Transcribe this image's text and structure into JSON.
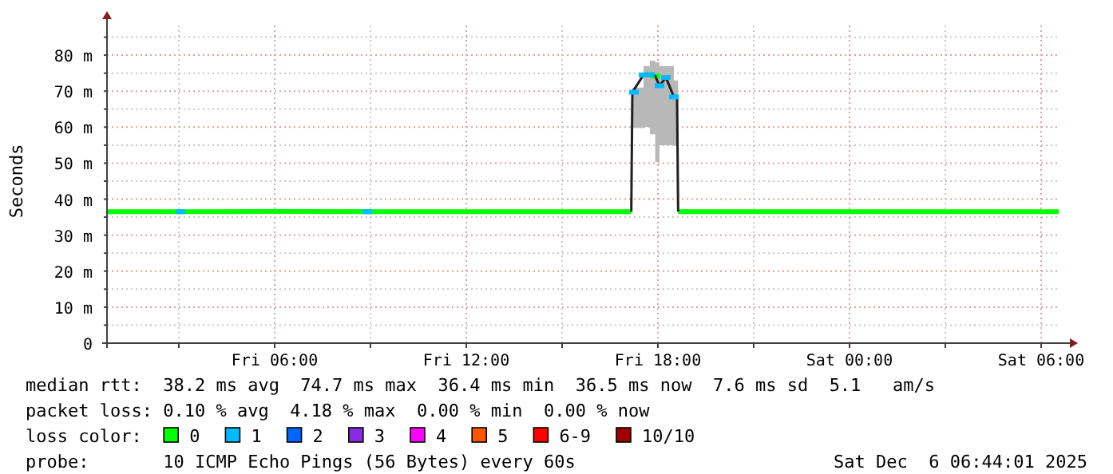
{
  "chart_data": {
    "type": "line",
    "ylabel": "Seconds",
    "legend_title": "loss color:",
    "legend": "bottom",
    "grid": true,
    "x": [
      "2025-12-05T00:45",
      "2025-12-05T03:00",
      "2025-12-05T06:00",
      "2025-12-05T09:00",
      "2025-12-05T12:00",
      "2025-12-05T15:00",
      "2025-12-05T17:10",
      "2025-12-05T17:12",
      "2025-12-05T17:33",
      "2025-12-05T17:45",
      "2025-12-05T17:55",
      "2025-12-05T18:03",
      "2025-12-05T18:15",
      "2025-12-05T18:30",
      "2025-12-05T18:36",
      "2025-12-05T18:38",
      "2025-12-06T00:00",
      "2025-12-06T03:00",
      "2025-12-06T06:33"
    ],
    "series": [
      {
        "name": "0",
        "color": "#00ff00",
        "values": [
          36.5,
          36.5,
          36.6,
          36.5,
          36.5,
          36.5,
          36.5,
          null,
          null,
          null,
          74.2,
          null,
          null,
          null,
          null,
          36.5,
          36.5,
          36.5,
          36.5
        ]
      },
      {
        "color": "#202020",
        "values": [
          null,
          null,
          null,
          null,
          null,
          null,
          36.5,
          69.7,
          74.5,
          74.6,
          74.2,
          71.5,
          73.8,
          68.4,
          68.4,
          36.5,
          null,
          null,
          null
        ],
        "lower": [
          36.4,
          36.4,
          36.4,
          36.4,
          36.4,
          36.4,
          36.4,
          59.8,
          60,
          58,
          50.3,
          55,
          55,
          54.8,
          54.8,
          36.4,
          36.4,
          36.4,
          36.4
        ],
        "upper": [
          36.6,
          36.6,
          37.2,
          36.6,
          36.6,
          36.6,
          36.6,
          71,
          77,
          78.5,
          78,
          77,
          77,
          73,
          73,
          36.6,
          36.6,
          36.6,
          36.6
        ]
      },
      {
        "type": "scatter",
        "name": "1",
        "color": "#00bbff",
        "marker": "square",
        "x": [
          "2025-12-05T03:03",
          "2025-12-05T08:54",
          "2025-12-05T17:15",
          "2025-12-05T17:33",
          "2025-12-05T17:45",
          "2025-12-05T18:03",
          "2025-12-05T18:15",
          "2025-12-05T18:30"
        ],
        "values": [
          36.5,
          36.5,
          69.7,
          74.5,
          74.6,
          71.5,
          73.8,
          68.4
        ]
      },
      {
        "type": "scatter",
        "name": "2",
        "color": "#0066ff",
        "values": [
          null,
          null,
          null,
          null,
          null,
          null,
          null,
          null,
          null,
          null,
          null,
          null,
          null,
          null,
          null,
          null,
          null,
          null,
          null
        ]
      },
      {
        "type": "scatter",
        "name": "3",
        "color": "#8a2be2",
        "values": [
          null,
          null,
          null,
          null,
          null,
          null,
          null,
          null,
          null,
          null,
          null,
          null,
          null,
          null,
          null,
          null,
          null,
          null,
          null
        ]
      },
      {
        "type": "scatter",
        "name": "4",
        "color": "#ff00ff",
        "values": [
          null,
          null,
          null,
          null,
          null,
          null,
          null,
          null,
          null,
          null,
          null,
          null,
          null,
          null,
          null,
          null,
          null,
          null,
          null
        ]
      },
      {
        "type": "scatter",
        "name": "5",
        "color": "#ff5500",
        "values": [
          null,
          null,
          null,
          null,
          null,
          null,
          null,
          null,
          null,
          null,
          null,
          null,
          null,
          null,
          null,
          null,
          null,
          null,
          null
        ]
      },
      {
        "type": "scatter",
        "name": "6-9",
        "color": "#ff0000",
        "values": [
          null,
          null,
          null,
          null,
          null,
          null,
          null,
          null,
          null,
          null,
          null,
          null,
          null,
          null,
          null,
          null,
          null,
          null,
          null
        ]
      },
      {
        "type": "scatter",
        "name": "10/10",
        "color": "#a10000",
        "values": [
          null,
          null,
          null,
          null,
          null,
          null,
          null,
          null,
          null,
          null,
          null,
          null,
          null,
          null,
          null,
          null,
          null,
          null,
          null
        ]
      }
    ],
    "xlim": [
      "2025-12-05T00:45",
      "2025-12-06T06:54"
    ],
    "xticks": [
      {
        "value": "2025-12-05T03:00",
        "label": null
      },
      {
        "value": "2025-12-05T06:00",
        "label": "Fri 06:00"
      },
      {
        "value": "2025-12-05T09:00",
        "label": null
      },
      {
        "value": "2025-12-05T12:00",
        "label": "Fri 12:00"
      },
      {
        "value": "2025-12-05T15:00",
        "label": null
      },
      {
        "value": "2025-12-05T18:00",
        "label": "Fri 18:00"
      },
      {
        "value": "2025-12-05T21:00",
        "label": null
      },
      {
        "value": "2025-12-06T00:00",
        "label": "Sat 00:00"
      },
      {
        "value": "2025-12-06T03:00",
        "label": null
      },
      {
        "value": "2025-12-06T06:00",
        "label": "Sat 06:00"
      }
    ],
    "ylim": [
      0,
      90
    ],
    "yticks": [
      0,
      {
        "value": 5,
        "label": null
      },
      {
        "value": 10,
        "label": "10 m"
      },
      {
        "value": 15,
        "label": null
      },
      {
        "value": 20,
        "label": "20 m"
      },
      {
        "value": 25,
        "label": null
      },
      {
        "value": 30,
        "label": "30 m"
      },
      {
        "value": 35,
        "label": null
      },
      {
        "value": 40,
        "label": "40 m"
      },
      {
        "value": 45,
        "label": null
      },
      {
        "value": 50,
        "label": "50 m"
      },
      {
        "value": 55,
        "label": null
      },
      {
        "value": 60,
        "label": "60 m"
      },
      {
        "value": 65,
        "label": null
      },
      {
        "value": 70,
        "label": "70 m"
      },
      {
        "value": 75,
        "label": null
      },
      {
        "value": 80,
        "label": "80 m"
      },
      {
        "value": 85,
        "label": null
      }
    ],
    "annotations": [
      "median rtt:  38.2 ms avg  74.7 ms max  36.4 ms min  36.5 ms now  7.6 ms sd  5.1   am/s",
      "packet loss: 0.10 % avg  4.18 % max  0.00 % min  0.00 % now",
      "probe:       10 ICMP Echo Pings (56 Bytes) every 60s",
      "Sat Dec  6 06:44:01 2025"
    ]
  }
}
